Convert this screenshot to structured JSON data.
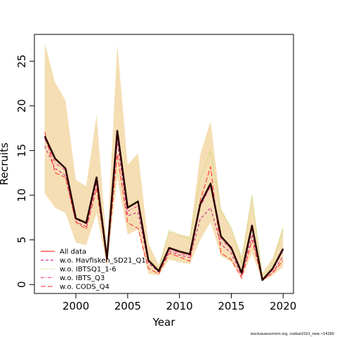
{
  "chart_data": {
    "type": "line",
    "xlabel": "Year",
    "ylabel": "Recruits",
    "xlim": [
      1996,
      2021
    ],
    "ylim": [
      -1,
      28
    ],
    "x_ticks": [
      2000,
      2005,
      2010,
      2015,
      2020
    ],
    "y_ticks": [
      0,
      5,
      10,
      15,
      20,
      25
    ],
    "x": [
      1997,
      1998,
      1999,
      2000,
      2001,
      2002,
      2003,
      2004,
      2005,
      2006,
      2007,
      2008,
      2009,
      2010,
      2011,
      2012,
      2013,
      2014,
      2015,
      2016,
      2017,
      2018,
      2019,
      2020
    ],
    "band": {
      "color": "#f5deb3",
      "upper": [
        27.0,
        22.6,
        20.6,
        11.7,
        11.0,
        19.0,
        4.0,
        26.9,
        13.4,
        14.7,
        4.6,
        2.2,
        6.0,
        5.6,
        5.4,
        14.5,
        18.3,
        8.5,
        6.3,
        3.2,
        10.0,
        1.3,
        3.0,
        6.5
      ],
      "lower": [
        10.2,
        8.6,
        8.0,
        4.7,
        4.4,
        8.0,
        2.0,
        12.0,
        5.6,
        6.2,
        1.2,
        1.0,
        2.8,
        2.5,
        2.3,
        5.0,
        7.0,
        3.2,
        2.5,
        0.8,
        3.5,
        0.4,
        1.0,
        2.0
      ]
    },
    "series": [
      {
        "name": "All data",
        "color": "#ff0000",
        "dash": "solid",
        "values": [
          16.6,
          14.1,
          13.0,
          7.4,
          6.9,
          12.0,
          2.9,
          17.2,
          8.6,
          9.3,
          2.7,
          1.5,
          4.1,
          3.7,
          3.4,
          9.0,
          11.3,
          5.4,
          4.1,
          1.3,
          6.6,
          0.5,
          1.8,
          4.0
        ]
      },
      {
        "name": "w.o. Havfisken_SD21_Q1",
        "color": "#c71585",
        "dash": "dashed",
        "values": [
          15.5,
          13.0,
          12.2,
          7.0,
          6.5,
          11.4,
          2.8,
          16.0,
          7.7,
          8.1,
          2.4,
          1.4,
          3.7,
          3.3,
          3.0,
          7.3,
          8.6,
          4.5,
          3.5,
          1.0,
          5.6,
          0.5,
          1.3,
          3.2
        ]
      },
      {
        "name": "w.o. IBTSQ1_1-6",
        "color": "#9acd32",
        "dash": "dotted",
        "values": [
          16.0,
          13.9,
          13.1,
          7.5,
          7.1,
          12.1,
          2.9,
          17.0,
          8.8,
          9.5,
          3.0,
          1.7,
          6.1,
          5.5,
          5.1,
          11.8,
          15.0,
          8.2,
          6.4,
          2.4,
          10.0,
          0.7,
          2.2,
          6.3
        ]
      },
      {
        "name": "w.o. IBTS_Q3",
        "color": "#ff3399",
        "dash": "dashdot",
        "values": [
          16.3,
          13.6,
          12.8,
          7.3,
          6.8,
          11.8,
          2.9,
          16.8,
          8.2,
          8.8,
          2.6,
          1.5,
          3.9,
          3.5,
          3.2,
          8.7,
          11.0,
          5.1,
          3.9,
          1.2,
          6.3,
          0.5,
          1.6,
          3.8
        ]
      },
      {
        "name": "w.o. CODS_Q4",
        "color": "#ff2a2a",
        "dash": "longdash",
        "values": [
          17.1,
          12.5,
          12.0,
          7.0,
          6.2,
          10.8,
          2.6,
          14.6,
          6.9,
          6.3,
          1.8,
          1.2,
          3.5,
          3.1,
          2.6,
          9.4,
          13.2,
          3.5,
          2.8,
          0.7,
          5.0,
          0.5,
          1.3,
          2.7
        ]
      },
      {
        "name": "",
        "color": "#2a0000",
        "dash": "bold",
        "values": [
          16.6,
          14.1,
          13.0,
          7.4,
          6.9,
          12.0,
          2.9,
          17.2,
          8.6,
          9.3,
          2.7,
          1.5,
          4.1,
          3.7,
          3.4,
          9.0,
          11.3,
          5.4,
          4.1,
          1.3,
          6.6,
          0.5,
          1.8,
          4.0
        ]
      }
    ],
    "legend_position": "bottom-left",
    "grid": false
  },
  "footer_note": "stockassessment.org, codkat2021_new, r14260"
}
